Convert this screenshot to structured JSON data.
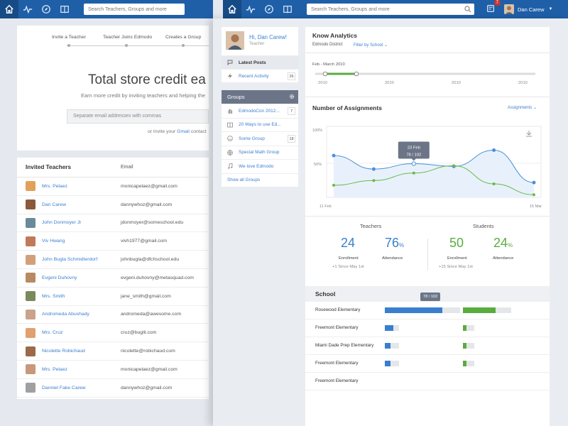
{
  "nav": {
    "search_placeholder": "Search Teachers, Groups and more",
    "notifications": "7",
    "user_name": "Dan Carew"
  },
  "back_page": {
    "steps": [
      "Invite a Teacher",
      "Teacher Joins Edmodo",
      "Creates a Group"
    ],
    "title": "Total store credit ea",
    "subtitle": "Earn more credit by inviting teachers and helping the",
    "email_placeholder": "Separate email addresses with commas",
    "or_invite": "or Invite your",
    "gmail": "Gmail",
    "contacts": "contact",
    "invited_header": "Invited Teachers",
    "email_header": "Email",
    "teachers": [
      {
        "name": "Mrs. Pelaez",
        "email": "monicapelaez@gmail.com"
      },
      {
        "name": "Dan Carew",
        "email": "dannywhoz@gmail.com"
      },
      {
        "name": "John Donmoyer Jr",
        "email": "jdonmoyer@someschool.edu"
      },
      {
        "name": "Viv Hwang",
        "email": "vivh1977@gmail.com"
      },
      {
        "name": "John Bugla Schmidterdorf",
        "email": "johnbugla@dfchschool.edu"
      },
      {
        "name": "Evgeni Duhovny",
        "email": "evgeni.duhovny@metasquad.com"
      },
      {
        "name": "Mrs. Smith",
        "email": "jane_smith@gmail.com"
      },
      {
        "name": "Andromeda Abushady",
        "email": "andromeda@awesome.com"
      },
      {
        "name": "Mrs. Cruz",
        "email": "cruz@buglil.com"
      },
      {
        "name": "Nicolette Robichaud",
        "email": "nicolette@robichaud.com"
      },
      {
        "name": "Mrs. Pelaez",
        "email": "monicapelaez@gmail.com"
      },
      {
        "name": "Danniel Fake Carew",
        "email": "dannywhoz@gmail.com"
      }
    ]
  },
  "profile": {
    "greeting": "Hi, Dan Carew!",
    "role": "Teacher"
  },
  "menu": [
    {
      "label": "Latest Posts",
      "count": ""
    },
    {
      "label": "Recent Activity",
      "count": "26"
    }
  ],
  "groups_title": "Groups",
  "groups": [
    {
      "label": "EdmodoCon 2012...",
      "count": "7"
    },
    {
      "label": "20 Ways to use Ed...",
      "count": ""
    },
    {
      "label": "Some Group",
      "count": "18"
    },
    {
      "label": "Special Math Group",
      "count": ""
    },
    {
      "label": "We love Edmodo",
      "count": ""
    }
  ],
  "show_all": "Show all Groups",
  "analytics": {
    "title": "Know Analytics",
    "district": "Edmodo District",
    "filter": "Filter by School",
    "range": "Feb - March 2010",
    "years": [
      "2010",
      "2010",
      "2010",
      "2010"
    ],
    "assignments_title": "Number of Assignments",
    "assignments_dropdown": "Assignments",
    "teachers_label": "Teachers",
    "students_label": "Students",
    "teachers": {
      "enrollment": "24",
      "attendance": "76",
      "since": "+1 Since May 1st"
    },
    "students": {
      "enrollment": "50",
      "attendance": "24",
      "since": "+15 Since May 1st"
    },
    "enrollment_label": "Enrollment",
    "attendance_label": "Attendance",
    "pct": "%",
    "school_title": "School",
    "school_tooltip": "78 / 102"
  },
  "chart_data": {
    "type": "line",
    "x_ticks": [
      "11 Feb",
      "15 Mar"
    ],
    "y_ticks": [
      "100%",
      "50%"
    ],
    "ylim": [
      0,
      100
    ],
    "tooltip": {
      "label": "23 Feb",
      "value": "78 / 102"
    },
    "series": [
      {
        "color": "#4a90d9",
        "values": [
          62,
          42,
          50,
          46,
          70,
          22
        ]
      },
      {
        "color": "#6ab94a",
        "values": [
          18,
          25,
          36,
          47,
          20,
          4
        ]
      }
    ]
  },
  "schools": [
    {
      "name": "Rosewood Elementary",
      "teachers": 0.76,
      "students": 0.68
    },
    {
      "name": "Freemont Elementary",
      "teachers": 0.58,
      "students": 0.3
    },
    {
      "name": "Miami Dade Prep Elementary",
      "teachers": 0.4,
      "students": 0.3
    },
    {
      "name": "Freemont Elementary",
      "teachers": 0.4,
      "students": 0.3
    },
    {
      "name": "Freemont Elementary",
      "teachers": 0,
      "students": 0
    }
  ],
  "colors": {
    "brand": "#1f5fa8",
    "teacher": "#3a7fcf",
    "student": "#5aac3f"
  }
}
